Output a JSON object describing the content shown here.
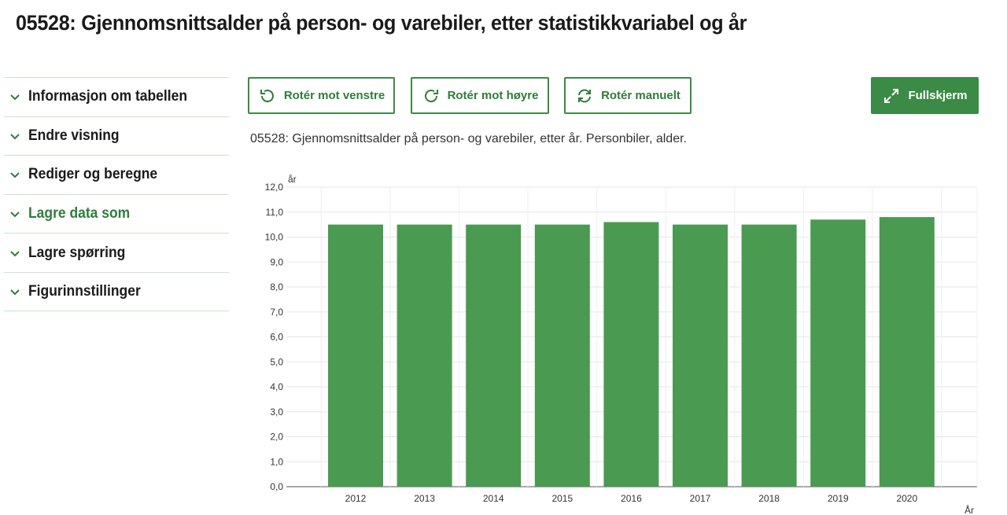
{
  "page": {
    "title": "05528: Gjennomsnittsalder på person- og varebiler, etter statistikkvariabel og år"
  },
  "sidebar": {
    "items": [
      {
        "label": "Informasjon om tabellen",
        "icon": "chevron-down-icon"
      },
      {
        "label": "Endre visning",
        "icon": "chevron-down-icon"
      },
      {
        "label": "Rediger og beregne",
        "icon": "chevron-down-icon"
      },
      {
        "label": "Lagre data som",
        "icon": "chevron-down-icon"
      },
      {
        "label": "Lagre spørring",
        "icon": "chevron-down-icon"
      },
      {
        "label": "Figurinnstillinger",
        "icon": "chevron-down-icon"
      }
    ]
  },
  "toolbar": {
    "rotate_left": "Rotér mot venstre",
    "rotate_right": "Rotér mot høyre",
    "rotate_manual": "Rotér manuelt",
    "fullscreen": "Fullskjerm"
  },
  "colors": {
    "accent": "#3b8a45",
    "active_text": "#2e7d3a",
    "bar": "#4a9a52",
    "divider": "#c9e4ce"
  },
  "chart_data": {
    "type": "bar",
    "title": "05528: Gjennomsnittsalder på person- og varebiler, etter år. Personbiler, alder.",
    "xlabel": "År",
    "ylabel": "år",
    "categories": [
      "2012",
      "2013",
      "2014",
      "2015",
      "2016",
      "2017",
      "2018",
      "2019",
      "2020"
    ],
    "values": [
      10.5,
      10.5,
      10.5,
      10.5,
      10.6,
      10.5,
      10.5,
      10.7,
      10.8
    ],
    "ylim": [
      0,
      12
    ],
    "yticks": [
      "0,0",
      "1,0",
      "2,0",
      "3,0",
      "4,0",
      "5,0",
      "6,0",
      "7,0",
      "8,0",
      "9,0",
      "10,0",
      "11,0",
      "12,0"
    ],
    "grid": true,
    "legend": "none"
  }
}
